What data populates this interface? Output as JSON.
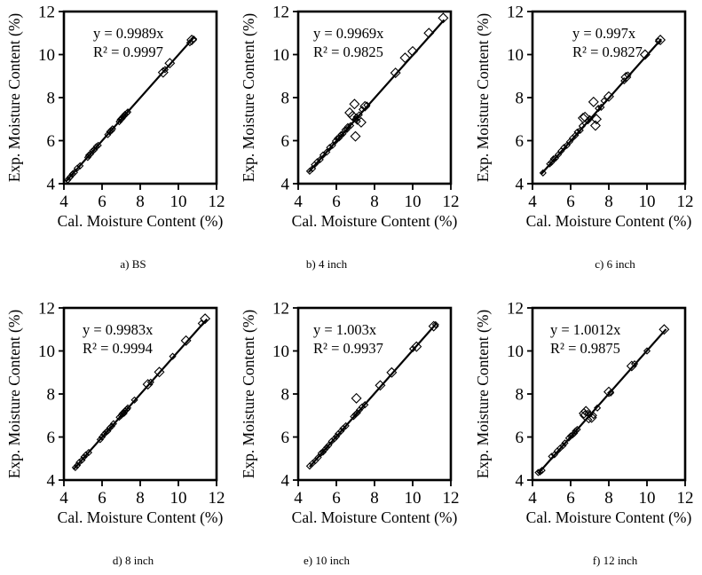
{
  "page": {
    "background_color": "#ffffff",
    "ink_color": "#000000",
    "marker_style": "open-diamond"
  },
  "chart_data": [
    {
      "type": "scatter",
      "caption": "a) BS",
      "equation": "y = 0.9989x",
      "r_squared": "R² = 0.9997",
      "slope": 0.9989,
      "xlabel": "Cal. Moisture Content (%)",
      "ylabel": "Exp. Moisture Content (%)",
      "xlim": [
        4,
        12
      ],
      "ylim": [
        4,
        12
      ],
      "xticks": [
        4,
        6,
        8,
        10,
        12
      ],
      "yticks": [
        4,
        6,
        8,
        10,
        12
      ],
      "grid": false,
      "line_x": [
        4.1,
        10.85
      ],
      "points": [
        [
          4.2,
          4.17
        ],
        [
          4.3,
          4.28
        ],
        [
          4.35,
          4.33
        ],
        [
          4.45,
          4.45
        ],
        [
          4.55,
          4.52
        ],
        [
          4.7,
          4.72
        ],
        [
          4.85,
          4.83
        ],
        [
          5.25,
          5.22
        ],
        [
          5.3,
          5.32
        ],
        [
          5.4,
          5.38
        ],
        [
          5.5,
          5.52
        ],
        [
          5.6,
          5.58
        ],
        [
          5.7,
          5.72
        ],
        [
          5.8,
          5.78
        ],
        [
          6.3,
          6.28
        ],
        [
          6.4,
          6.42
        ],
        [
          6.5,
          6.47
        ],
        [
          6.55,
          6.55
        ],
        [
          6.9,
          6.88
        ],
        [
          6.95,
          6.97
        ],
        [
          7.0,
          7.02
        ],
        [
          7.05,
          7.03
        ],
        [
          7.1,
          7.12
        ],
        [
          7.15,
          7.14
        ],
        [
          7.2,
          7.22
        ],
        [
          7.3,
          7.28
        ],
        [
          7.35,
          7.33
        ],
        [
          9.2,
          9.17,
          1
        ],
        [
          9.3,
          9.3
        ],
        [
          9.55,
          9.6,
          1
        ],
        [
          10.6,
          10.55
        ],
        [
          10.7,
          10.68,
          1
        ],
        [
          10.8,
          10.72
        ]
      ]
    },
    {
      "type": "scatter",
      "caption": "b) 4 inch",
      "equation": "y = 0.9969x",
      "r_squared": "R² = 0.9825",
      "slope": 0.9969,
      "xlabel": "Cal. Moisture Content (%)",
      "ylabel": "Exp. Moisture Content (%)",
      "xlim": [
        4,
        12
      ],
      "ylim": [
        4,
        12
      ],
      "xticks": [
        4,
        6,
        8,
        10,
        12
      ],
      "yticks": [
        4,
        6,
        8,
        10,
        12
      ],
      "grid": false,
      "line_x": [
        4.55,
        11.65
      ],
      "points": [
        [
          4.6,
          4.58
        ],
        [
          4.75,
          4.7
        ],
        [
          4.85,
          4.88
        ],
        [
          5.0,
          5.02
        ],
        [
          5.15,
          5.12
        ],
        [
          5.3,
          5.33
        ],
        [
          5.5,
          5.47
        ],
        [
          5.65,
          5.68
        ],
        [
          5.8,
          5.78
        ],
        [
          5.95,
          5.98
        ],
        [
          6.05,
          6.1
        ],
        [
          6.15,
          6.13
        ],
        [
          6.25,
          6.28
        ],
        [
          6.35,
          6.32
        ],
        [
          6.45,
          6.5
        ],
        [
          6.55,
          6.52
        ],
        [
          6.6,
          6.65
        ],
        [
          6.7,
          7.3,
          1
        ],
        [
          6.75,
          6.7
        ],
        [
          6.85,
          7.15,
          1
        ],
        [
          6.95,
          7.7,
          1
        ],
        [
          7.0,
          6.2,
          1
        ],
        [
          7.0,
          7.0
        ],
        [
          7.05,
          7.1
        ],
        [
          7.1,
          6.9
        ],
        [
          7.2,
          7.2
        ],
        [
          7.3,
          6.85,
          1
        ],
        [
          7.35,
          7.45
        ],
        [
          7.5,
          7.6,
          1
        ],
        [
          7.6,
          7.65
        ],
        [
          9.1,
          9.15,
          1
        ],
        [
          9.6,
          9.85,
          1
        ],
        [
          10.0,
          10.15,
          1
        ],
        [
          10.85,
          11.0,
          1
        ],
        [
          11.6,
          11.7,
          1
        ]
      ]
    },
    {
      "type": "scatter",
      "caption": "c) 6 inch",
      "equation": "y = 0.997x",
      "r_squared": "R² = 0.9827",
      "slope": 0.997,
      "xlabel": "Cal. Moisture Content (%)",
      "ylabel": "Exp. Moisture Content (%)",
      "xlim": [
        4,
        12
      ],
      "ylim": [
        4,
        12
      ],
      "xticks": [
        4,
        6,
        8,
        10,
        12
      ],
      "yticks": [
        4,
        6,
        8,
        10,
        12
      ],
      "grid": false,
      "line_x": [
        4.45,
        10.75
      ],
      "points": [
        [
          4.55,
          4.5
        ],
        [
          4.9,
          4.92
        ],
        [
          5.0,
          5.0
        ],
        [
          5.1,
          5.15
        ],
        [
          5.2,
          5.18
        ],
        [
          5.35,
          5.35
        ],
        [
          5.5,
          5.52
        ],
        [
          5.65,
          5.68
        ],
        [
          5.8,
          5.78
        ],
        [
          5.95,
          5.95
        ],
        [
          6.1,
          6.12
        ],
        [
          6.25,
          6.25
        ],
        [
          6.35,
          6.4
        ],
        [
          6.5,
          6.48
        ],
        [
          6.6,
          6.68
        ],
        [
          6.65,
          7.05,
          1
        ],
        [
          6.75,
          7.1,
          1
        ],
        [
          6.9,
          6.92
        ],
        [
          7.0,
          7.02
        ],
        [
          7.2,
          7.8,
          1
        ],
        [
          7.3,
          6.7,
          1
        ],
        [
          7.35,
          7.0,
          1
        ],
        [
          7.45,
          7.5
        ],
        [
          7.6,
          7.55
        ],
        [
          7.75,
          7.85
        ],
        [
          8.0,
          8.05,
          1
        ],
        [
          8.8,
          8.78
        ],
        [
          8.9,
          8.95,
          1
        ],
        [
          9.0,
          9.05
        ],
        [
          9.9,
          10.0,
          1
        ],
        [
          10.6,
          10.62
        ],
        [
          10.7,
          10.68,
          1
        ]
      ]
    },
    {
      "type": "scatter",
      "caption": "d) 8 inch",
      "equation": "y = 0.9983x",
      "r_squared": "R² = 0.9994",
      "slope": 0.9983,
      "xlabel": "Cal. Moisture Content (%)",
      "ylabel": "Exp. Moisture Content (%)",
      "xlim": [
        4,
        12
      ],
      "ylim": [
        4,
        12
      ],
      "xticks": [
        4,
        6,
        8,
        10,
        12
      ],
      "yticks": [
        4,
        6,
        8,
        10,
        12
      ],
      "grid": false,
      "line_x": [
        4.5,
        11.5
      ],
      "points": [
        [
          4.6,
          4.58
        ],
        [
          4.7,
          4.68
        ],
        [
          4.8,
          4.82
        ],
        [
          4.95,
          4.93
        ],
        [
          5.05,
          5.07
        ],
        [
          5.15,
          5.17
        ],
        [
          5.3,
          5.28
        ],
        [
          5.9,
          5.88
        ],
        [
          6.0,
          6.0
        ],
        [
          6.1,
          6.12
        ],
        [
          6.2,
          6.22
        ],
        [
          6.3,
          6.28
        ],
        [
          6.4,
          6.42
        ],
        [
          6.5,
          6.5
        ],
        [
          6.6,
          6.62
        ],
        [
          6.9,
          6.92
        ],
        [
          7.0,
          7.0
        ],
        [
          7.05,
          7.08
        ],
        [
          7.1,
          7.12
        ],
        [
          7.15,
          7.1
        ],
        [
          7.2,
          7.22
        ],
        [
          7.3,
          7.28
        ],
        [
          7.35,
          7.35
        ],
        [
          7.7,
          7.72
        ],
        [
          8.4,
          8.45,
          1
        ],
        [
          8.55,
          8.55
        ],
        [
          9.0,
          9.02,
          1
        ],
        [
          9.7,
          9.75
        ],
        [
          10.4,
          10.48,
          1
        ],
        [
          11.2,
          11.28
        ],
        [
          11.4,
          11.5,
          1
        ]
      ]
    },
    {
      "type": "scatter",
      "caption": "e) 10 inch",
      "equation": "y = 1.003x",
      "r_squared": "R² = 0.9937",
      "slope": 1.003,
      "xlabel": "Cal. Moisture Content (%)",
      "ylabel": "Exp. Moisture Content (%)",
      "xlim": [
        4,
        12
      ],
      "ylim": [
        4,
        12
      ],
      "xticks": [
        4,
        6,
        8,
        10,
        12
      ],
      "yticks": [
        4,
        6,
        8,
        10,
        12
      ],
      "grid": false,
      "line_x": [
        4.6,
        11.25
      ],
      "points": [
        [
          4.6,
          4.65
        ],
        [
          4.75,
          4.78
        ],
        [
          4.9,
          4.9
        ],
        [
          5.05,
          5.05
        ],
        [
          5.2,
          5.25
        ],
        [
          5.3,
          5.3
        ],
        [
          5.4,
          5.42
        ],
        [
          5.5,
          5.52
        ],
        [
          5.6,
          5.62
        ],
        [
          5.75,
          5.8
        ],
        [
          5.9,
          5.92
        ],
        [
          6.0,
          6.02
        ],
        [
          6.1,
          6.15
        ],
        [
          6.25,
          6.28
        ],
        [
          6.35,
          6.4
        ],
        [
          6.5,
          6.52
        ],
        [
          6.9,
          6.95
        ],
        [
          7.0,
          7.05
        ],
        [
          7.05,
          7.8,
          1
        ],
        [
          7.1,
          7.12
        ],
        [
          7.2,
          7.25
        ],
        [
          7.35,
          7.4
        ],
        [
          7.5,
          7.5
        ],
        [
          8.3,
          8.4,
          1
        ],
        [
          8.9,
          9.0,
          1
        ],
        [
          10.0,
          10.1
        ],
        [
          10.2,
          10.2,
          1
        ],
        [
          11.1,
          11.15,
          1
        ],
        [
          11.2,
          11.22
        ]
      ]
    },
    {
      "type": "scatter",
      "caption": "f) 12 inch",
      "equation": "y = 1.0012x",
      "r_squared": "R² = 0.9875",
      "slope": 1.0012,
      "xlabel": "Cal. Moisture Content (%)",
      "ylabel": "Exp. Moisture Content (%)",
      "xlim": [
        4,
        12
      ],
      "ylim": [
        4,
        12
      ],
      "xticks": [
        4,
        6,
        8,
        10,
        12
      ],
      "yticks": [
        4,
        6,
        8,
        10,
        12
      ],
      "grid": false,
      "line_x": [
        4.3,
        11.0
      ],
      "points": [
        [
          4.3,
          4.35
        ],
        [
          4.4,
          4.38
        ],
        [
          4.5,
          4.45
        ],
        [
          5.0,
          5.1
        ],
        [
          5.15,
          5.18
        ],
        [
          5.3,
          5.35
        ],
        [
          5.45,
          5.48
        ],
        [
          5.6,
          5.6
        ],
        [
          5.7,
          5.72
        ],
        [
          5.9,
          5.95
        ],
        [
          6.0,
          6.05
        ],
        [
          6.1,
          6.1
        ],
        [
          6.2,
          6.18
        ],
        [
          6.25,
          6.28
        ],
        [
          6.35,
          6.35
        ],
        [
          6.7,
          7.1,
          1
        ],
        [
          6.75,
          7.0,
          1
        ],
        [
          6.8,
          7.2,
          1
        ],
        [
          6.9,
          7.1
        ],
        [
          6.95,
          6.8
        ],
        [
          7.0,
          7.05
        ],
        [
          7.1,
          6.9,
          1
        ],
        [
          7.2,
          7.0
        ],
        [
          7.4,
          7.35
        ],
        [
          8.0,
          8.1,
          1
        ],
        [
          8.1,
          8.05
        ],
        [
          9.2,
          9.3,
          1
        ],
        [
          9.35,
          9.4
        ],
        [
          10.0,
          10.0
        ],
        [
          10.9,
          11.0,
          1
        ]
      ]
    }
  ]
}
